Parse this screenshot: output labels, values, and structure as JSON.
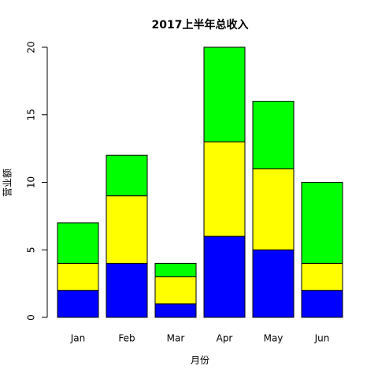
{
  "chart_data": {
    "type": "stacked_bar",
    "title": "2017上半年总收入",
    "x_label": "月份",
    "y_label": "营业额",
    "categories": [
      "Jan",
      "Feb",
      "Mar",
      "Apr",
      "May",
      "Jun"
    ],
    "series": [
      {
        "color": "#0000ff",
        "values": [
          2,
          4,
          1,
          6,
          5,
          2
        ]
      },
      {
        "color": "#ffff00",
        "values": [
          2,
          5,
          2,
          7,
          6,
          2
        ]
      },
      {
        "color": "#00ff00",
        "values": [
          3,
          3,
          1,
          7,
          5,
          6
        ]
      }
    ],
    "ylim": [
      0,
      20
    ],
    "yticks": [
      0,
      5,
      10,
      15,
      20
    ]
  }
}
